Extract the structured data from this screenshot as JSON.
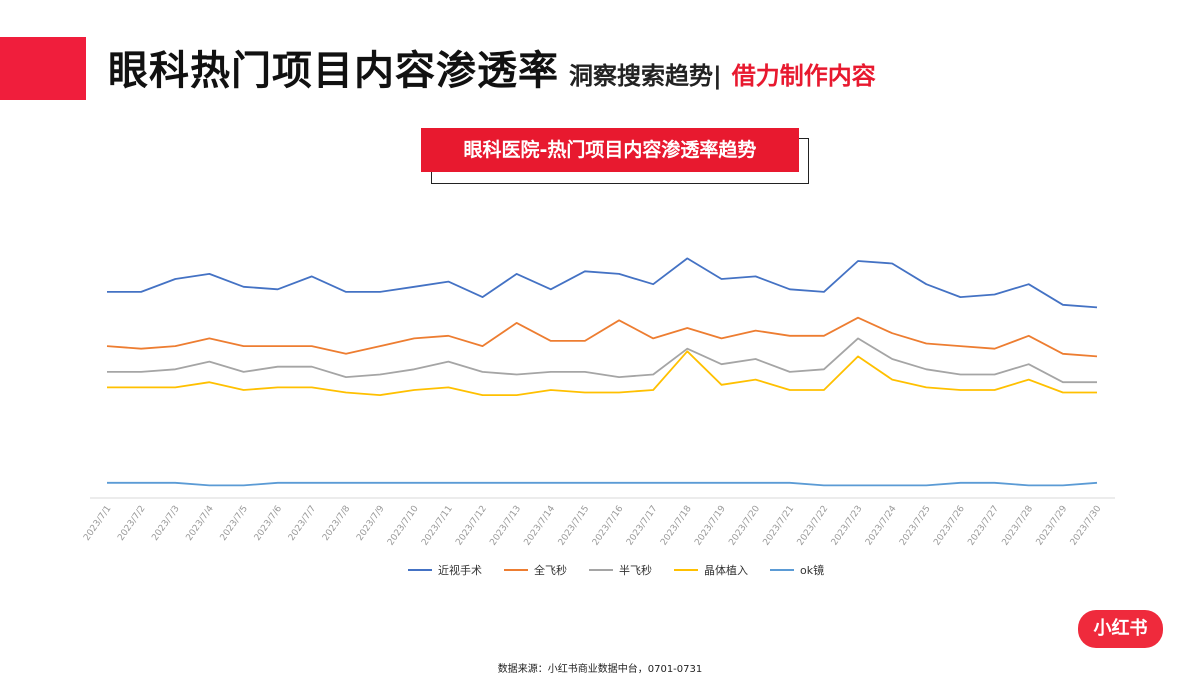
{
  "header": {
    "main_title": "眼科热门项目内容渗透率",
    "subtitle_1": "洞察搜索趋势|",
    "subtitle_2": "借力制作内容"
  },
  "chart_box_title": "眼科医院-热门项目内容渗透率趋势",
  "logo_text": "小红书",
  "source_text": "数据来源：小红书商业数据中台，0701-0731",
  "colors": {
    "accent_red": "#e8192f"
  },
  "chart_data": {
    "type": "line",
    "title": "眼科医院-热门项目内容渗透率趋势",
    "x": [
      "2023/7/1",
      "2023/7/2",
      "2023/7/3",
      "2023/7/4",
      "2023/7/5",
      "2023/7/6",
      "2023/7/7",
      "2023/7/8",
      "2023/7/9",
      "2023/7/10",
      "2023/7/11",
      "2023/7/12",
      "2023/7/13",
      "2023/7/14",
      "2023/7/15",
      "2023/7/16",
      "2023/7/17",
      "2023/7/18",
      "2023/7/19",
      "2023/7/20",
      "2023/7/21",
      "2023/7/22",
      "2023/7/23",
      "2023/7/24",
      "2023/7/25",
      "2023/7/26",
      "2023/7/27",
      "2023/7/28",
      "2023/7/29",
      "2023/7/30"
    ],
    "ylim": [
      0,
      100
    ],
    "grid": false,
    "legend_position": "bottom",
    "series": [
      {
        "name": "近视手术",
        "color": "#4472c4",
        "values": [
          76,
          76,
          81,
          83,
          78,
          77,
          82,
          76,
          76,
          78,
          80,
          74,
          83,
          77,
          84,
          83,
          79,
          89,
          81,
          82,
          77,
          76,
          88,
          87,
          79,
          74,
          75,
          79,
          71,
          70
        ]
      },
      {
        "name": "全飞秒",
        "color": "#ed7d31",
        "values": [
          55,
          54,
          55,
          58,
          55,
          55,
          55,
          52,
          55,
          58,
          59,
          55,
          64,
          57,
          57,
          65,
          58,
          62,
          58,
          61,
          59,
          59,
          66,
          60,
          56,
          55,
          54,
          59,
          52,
          51
        ]
      },
      {
        "name": "半飞秒",
        "color": "#a5a5a5",
        "values": [
          45,
          45,
          46,
          49,
          45,
          47,
          47,
          43,
          44,
          46,
          49,
          45,
          44,
          45,
          45,
          43,
          44,
          54,
          48,
          50,
          45,
          46,
          58,
          50,
          46,
          44,
          44,
          48,
          41,
          41
        ]
      },
      {
        "name": "晶体植入",
        "color": "#ffc000",
        "values": [
          39,
          39,
          39,
          41,
          38,
          39,
          39,
          37,
          36,
          38,
          39,
          36,
          36,
          38,
          37,
          37,
          38,
          53,
          40,
          42,
          38,
          38,
          51,
          42,
          39,
          38,
          38,
          42,
          37,
          37
        ]
      },
      {
        "name": "ok镜",
        "color": "#5b9bd5",
        "values": [
          2,
          2,
          2,
          1,
          1,
          2,
          2,
          2,
          2,
          2,
          2,
          2,
          2,
          2,
          2,
          2,
          2,
          2,
          2,
          2,
          2,
          1,
          1,
          1,
          1,
          2,
          2,
          1,
          1,
          2
        ]
      }
    ]
  }
}
